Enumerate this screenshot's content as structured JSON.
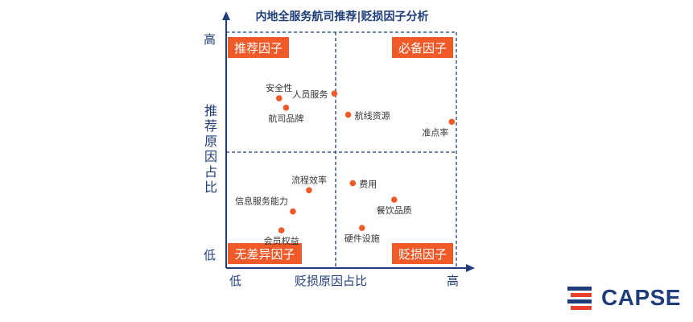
{
  "chart_data": {
    "type": "scatter",
    "title": "内地全服务航司推荐|贬损因子分析",
    "xlabel": "贬损原因占比",
    "ylabel": "推荐原因占比",
    "x_ticks": [
      "低",
      "高"
    ],
    "y_ticks": [
      "高",
      "低"
    ],
    "xlim": [
      0,
      100
    ],
    "ylim": [
      0,
      100
    ],
    "quadrants": [
      {
        "name": "推荐因子",
        "position": "top-left"
      },
      {
        "name": "必备因子",
        "position": "top-right"
      },
      {
        "name": "无差异因子",
        "position": "bottom-left"
      },
      {
        "name": "贬损因子",
        "position": "bottom-right"
      }
    ],
    "points": [
      {
        "label": "安全性",
        "x": 23,
        "y": 72,
        "label_pos": "above"
      },
      {
        "label": "人员服务",
        "x": 47,
        "y": 74,
        "label_pos": "left"
      },
      {
        "label": "航司品牌",
        "x": 26,
        "y": 68,
        "label_pos": "below"
      },
      {
        "label": "航线资源",
        "x": 53,
        "y": 65,
        "label_pos": "right"
      },
      {
        "label": "准点率",
        "x": 98,
        "y": 62,
        "label_pos": "below-left"
      },
      {
        "label": "流程效率",
        "x": 36,
        "y": 33,
        "label_pos": "above"
      },
      {
        "label": "信息服务能力",
        "x": 29,
        "y": 24,
        "label_pos": "above-left"
      },
      {
        "label": "会员权益",
        "x": 24,
        "y": 16,
        "label_pos": "below"
      },
      {
        "label": "费用",
        "x": 55,
        "y": 36,
        "label_pos": "right"
      },
      {
        "label": "餐饮品质",
        "x": 73,
        "y": 29,
        "label_pos": "below"
      },
      {
        "label": "硬件设施",
        "x": 59,
        "y": 17,
        "label_pos": "below"
      }
    ],
    "colors": {
      "point": "#f05a28",
      "quadrant_box": "#f05a28",
      "axis": "#1f3d7a",
      "divider": "#1f3d7a"
    }
  },
  "logo": {
    "text": "CAPSE"
  }
}
